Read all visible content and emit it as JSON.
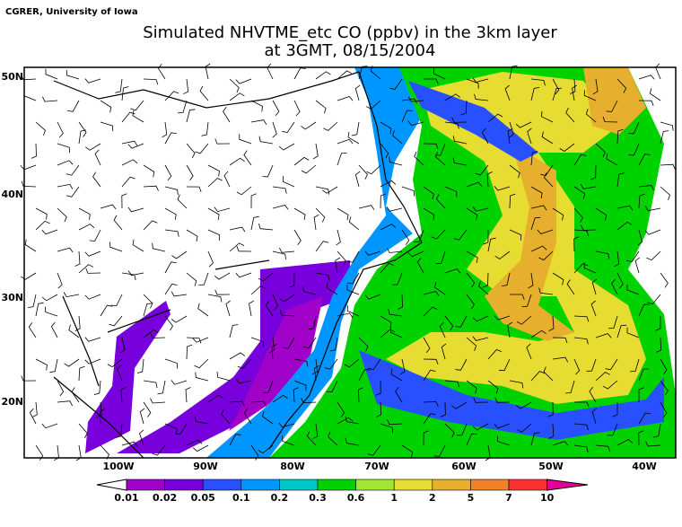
{
  "credit": "CGRER, University of Iowa",
  "title": [
    "Simulated NHVTME_etc CO (ppbv) in the 3km layer",
    "at 3GMT, 08/15/2004"
  ],
  "latitude_labels": [
    "50N",
    "40N",
    "30N",
    "20N"
  ],
  "longitude_labels": [
    "100W",
    "90W",
    "80W",
    "70W",
    "60W",
    "50W",
    "40W"
  ],
  "colorbar": {
    "levels": [
      "0.01",
      "0.02",
      "0.05",
      "0.1",
      "0.2",
      "0.3",
      "0.6",
      "1",
      "2",
      "5",
      "7",
      "10"
    ],
    "colors": [
      "#ffffff",
      "#a000c8",
      "#7800dc",
      "#2850ff",
      "#0096ff",
      "#00c8c8",
      "#00d200",
      "#a0e632",
      "#e6dc32",
      "#e6af2d",
      "#f08228",
      "#fa3232",
      "#e60096"
    ]
  }
}
